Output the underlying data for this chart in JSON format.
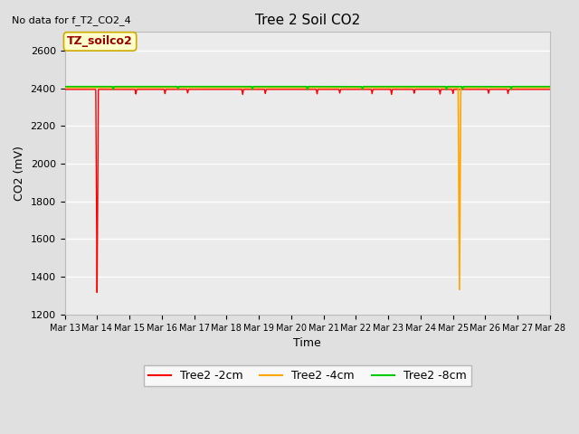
{
  "title": "Tree 2 Soil CO2",
  "subtitle": "No data for f_T2_CO2_4",
  "xlabel": "Time",
  "ylabel": "CO2 (mV)",
  "ylim": [
    1200,
    2700
  ],
  "yticks": [
    1200,
    1400,
    1600,
    1800,
    2000,
    2200,
    2400,
    2600
  ],
  "fig_bg_color": "#e0e0e0",
  "plot_bg_color": "#ebebeb",
  "grid_color": "#ffffff",
  "annotation_box": "TZ_soilco2",
  "annotation_box_facecolor": "#ffffcc",
  "annotation_box_edgecolor": "#ccaa00",
  "annotation_text_color": "#990000",
  "series": [
    {
      "label": "Tree2 -2cm",
      "color": "#ff0000",
      "base_value": 2395,
      "linewidth": 1.0,
      "spike_x": 1.0,
      "spike_y": 1295,
      "small_dips": [
        [
          2.2,
          2370
        ],
        [
          3.1,
          2372
        ],
        [
          3.8,
          2375
        ],
        [
          5.5,
          2368
        ],
        [
          6.2,
          2373
        ],
        [
          7.8,
          2370
        ],
        [
          8.5,
          2375
        ],
        [
          9.5,
          2372
        ],
        [
          10.1,
          2368
        ],
        [
          10.8,
          2374
        ],
        [
          11.6,
          2370
        ],
        [
          12.0,
          2373
        ],
        [
          13.1,
          2374
        ],
        [
          13.7,
          2372
        ]
      ]
    },
    {
      "label": "Tree2 -4cm",
      "color": "#ffa500",
      "base_value": 2405,
      "linewidth": 1.2,
      "spike_x": 12.2,
      "spike_y": 1320,
      "small_dips": []
    },
    {
      "label": "Tree2 -8cm",
      "color": "#00cc00",
      "base_value": 2410,
      "linewidth": 1.2,
      "spike_x": null,
      "spike_y": null,
      "small_dips": [
        [
          1.5,
          2395
        ],
        [
          3.5,
          2398
        ],
        [
          5.8,
          2396
        ],
        [
          7.5,
          2393
        ],
        [
          9.2,
          2397
        ],
        [
          11.8,
          2394
        ],
        [
          12.3,
          2396
        ],
        [
          13.8,
          2395
        ]
      ]
    }
  ],
  "x_start": 0,
  "x_end": 15,
  "x_tick_positions": [
    0,
    1,
    2,
    3,
    4,
    5,
    6,
    7,
    8,
    9,
    10,
    11,
    12,
    13,
    14,
    15
  ],
  "x_tick_labels": [
    "Mar 13",
    "Mar 14",
    "Mar 15",
    "Mar 16",
    "Mar 17",
    "Mar 18",
    "Mar 19",
    "Mar 20",
    "Mar 21",
    "Mar 22",
    "Mar 23",
    "Mar 24",
    "Mar 25",
    "Mar 26",
    "Mar 27",
    "Mar 28"
  ]
}
